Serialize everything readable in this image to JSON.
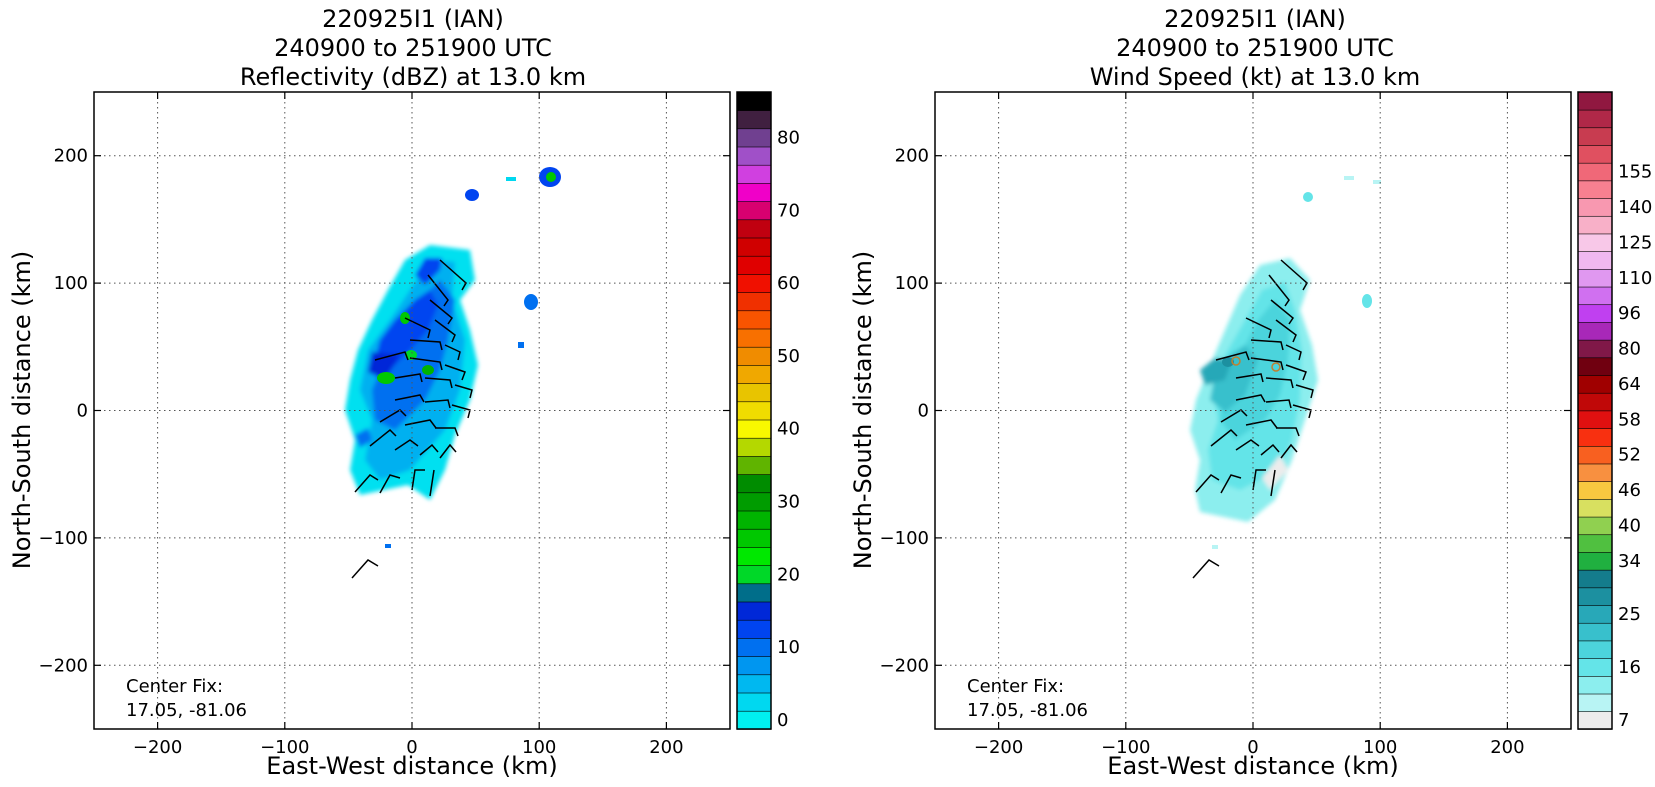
{
  "chart_data": [
    {
      "type": "heatmap",
      "title": [
        "220925I1 (IAN)",
        "240900 to 251900 UTC",
        "Reflectivity (dBZ) at 13.0 km"
      ],
      "xlabel": "East-West distance (km)",
      "ylabel": "North-South distance (km)",
      "xlim": [
        -250,
        250
      ],
      "ylim": [
        -250,
        250
      ],
      "x_ticks": [
        -200,
        -100,
        0,
        100,
        200
      ],
      "y_ticks": [
        -200,
        -100,
        0,
        100,
        200
      ],
      "x_tick_labels": [
        "−200",
        "−100",
        "0",
        "100",
        "200"
      ],
      "y_tick_labels": [
        "−200",
        "−100",
        "0",
        "100",
        "200"
      ],
      "grid": true,
      "annotation": [
        "Center Fix:",
        "17.05, -81.06"
      ],
      "colorbar": {
        "label_values": [
          "0",
          "10",
          "20",
          "30",
          "40",
          "50",
          "60",
          "70",
          "80"
        ],
        "label_bins": [
          0,
          4,
          8,
          12,
          16,
          20,
          24,
          28,
          32
        ],
        "colors": [
          "#00f0f0",
          "#00d8f0",
          "#00b8f0",
          "#0096f0",
          "#0070f0",
          "#0044f0",
          "#0028d8",
          "#006e8a",
          "#00d828",
          "#00e800",
          "#00c800",
          "#00b400",
          "#009c00",
          "#008c00",
          "#60b400",
          "#b4d800",
          "#f8f800",
          "#f0dc00",
          "#e8c400",
          "#f0a800",
          "#f08c00",
          "#f87000",
          "#f85400",
          "#f03000",
          "#f01000",
          "#e00000",
          "#d00000",
          "#c00010",
          "#d80070",
          "#f000c8",
          "#d040e0",
          "#a050c8",
          "#704090",
          "#402040",
          "#000000"
        ]
      },
      "wind_barbs": true
    },
    {
      "type": "heatmap",
      "title": [
        "220925I1 (IAN)",
        "240900 to 251900 UTC",
        "Wind Speed (kt) at 13.0 km"
      ],
      "xlabel": "East-West distance (km)",
      "ylabel": "North-South distance (km)",
      "xlim": [
        -250,
        250
      ],
      "ylim": [
        -250,
        250
      ],
      "x_ticks": [
        -200,
        -100,
        0,
        100,
        200
      ],
      "y_ticks": [
        -200,
        -100,
        0,
        100,
        200
      ],
      "x_tick_labels": [
        "−200",
        "−100",
        "0",
        "100",
        "200"
      ],
      "y_tick_labels": [
        "−200",
        "−100",
        "0",
        "100",
        "200"
      ],
      "grid": true,
      "annotation": [
        "Center Fix:",
        "17.05, -81.06"
      ],
      "colorbar": {
        "label_values": [
          "7",
          "16",
          "25",
          "34",
          "40",
          "46",
          "52",
          "58",
          "64",
          "80",
          "96",
          "110",
          "125",
          "140",
          "155"
        ],
        "label_bins": [
          0,
          3,
          6,
          9,
          11,
          13,
          15,
          17,
          19,
          21,
          23,
          25,
          27,
          29,
          31
        ],
        "colors": [
          "#ececec",
          "#b8f4f4",
          "#8ceeee",
          "#64e4e8",
          "#4cd4dc",
          "#38c0cc",
          "#28a8b8",
          "#1c90a0",
          "#147c8c",
          "#20b040",
          "#50c040",
          "#90d050",
          "#d8e060",
          "#f8c840",
          "#f89040",
          "#f86020",
          "#f83010",
          "#e01010",
          "#c00808",
          "#a00000",
          "#700010",
          "#801848",
          "#a828b8",
          "#c040f0",
          "#d070f0",
          "#e098f0",
          "#f0b8f0",
          "#f8c8e8",
          "#f8b0c8",
          "#f898b0",
          "#f88090",
          "#f06878",
          "#e05060",
          "#c83c50",
          "#b02848",
          "#901840"
        ]
      },
      "wind_barbs": true
    }
  ]
}
